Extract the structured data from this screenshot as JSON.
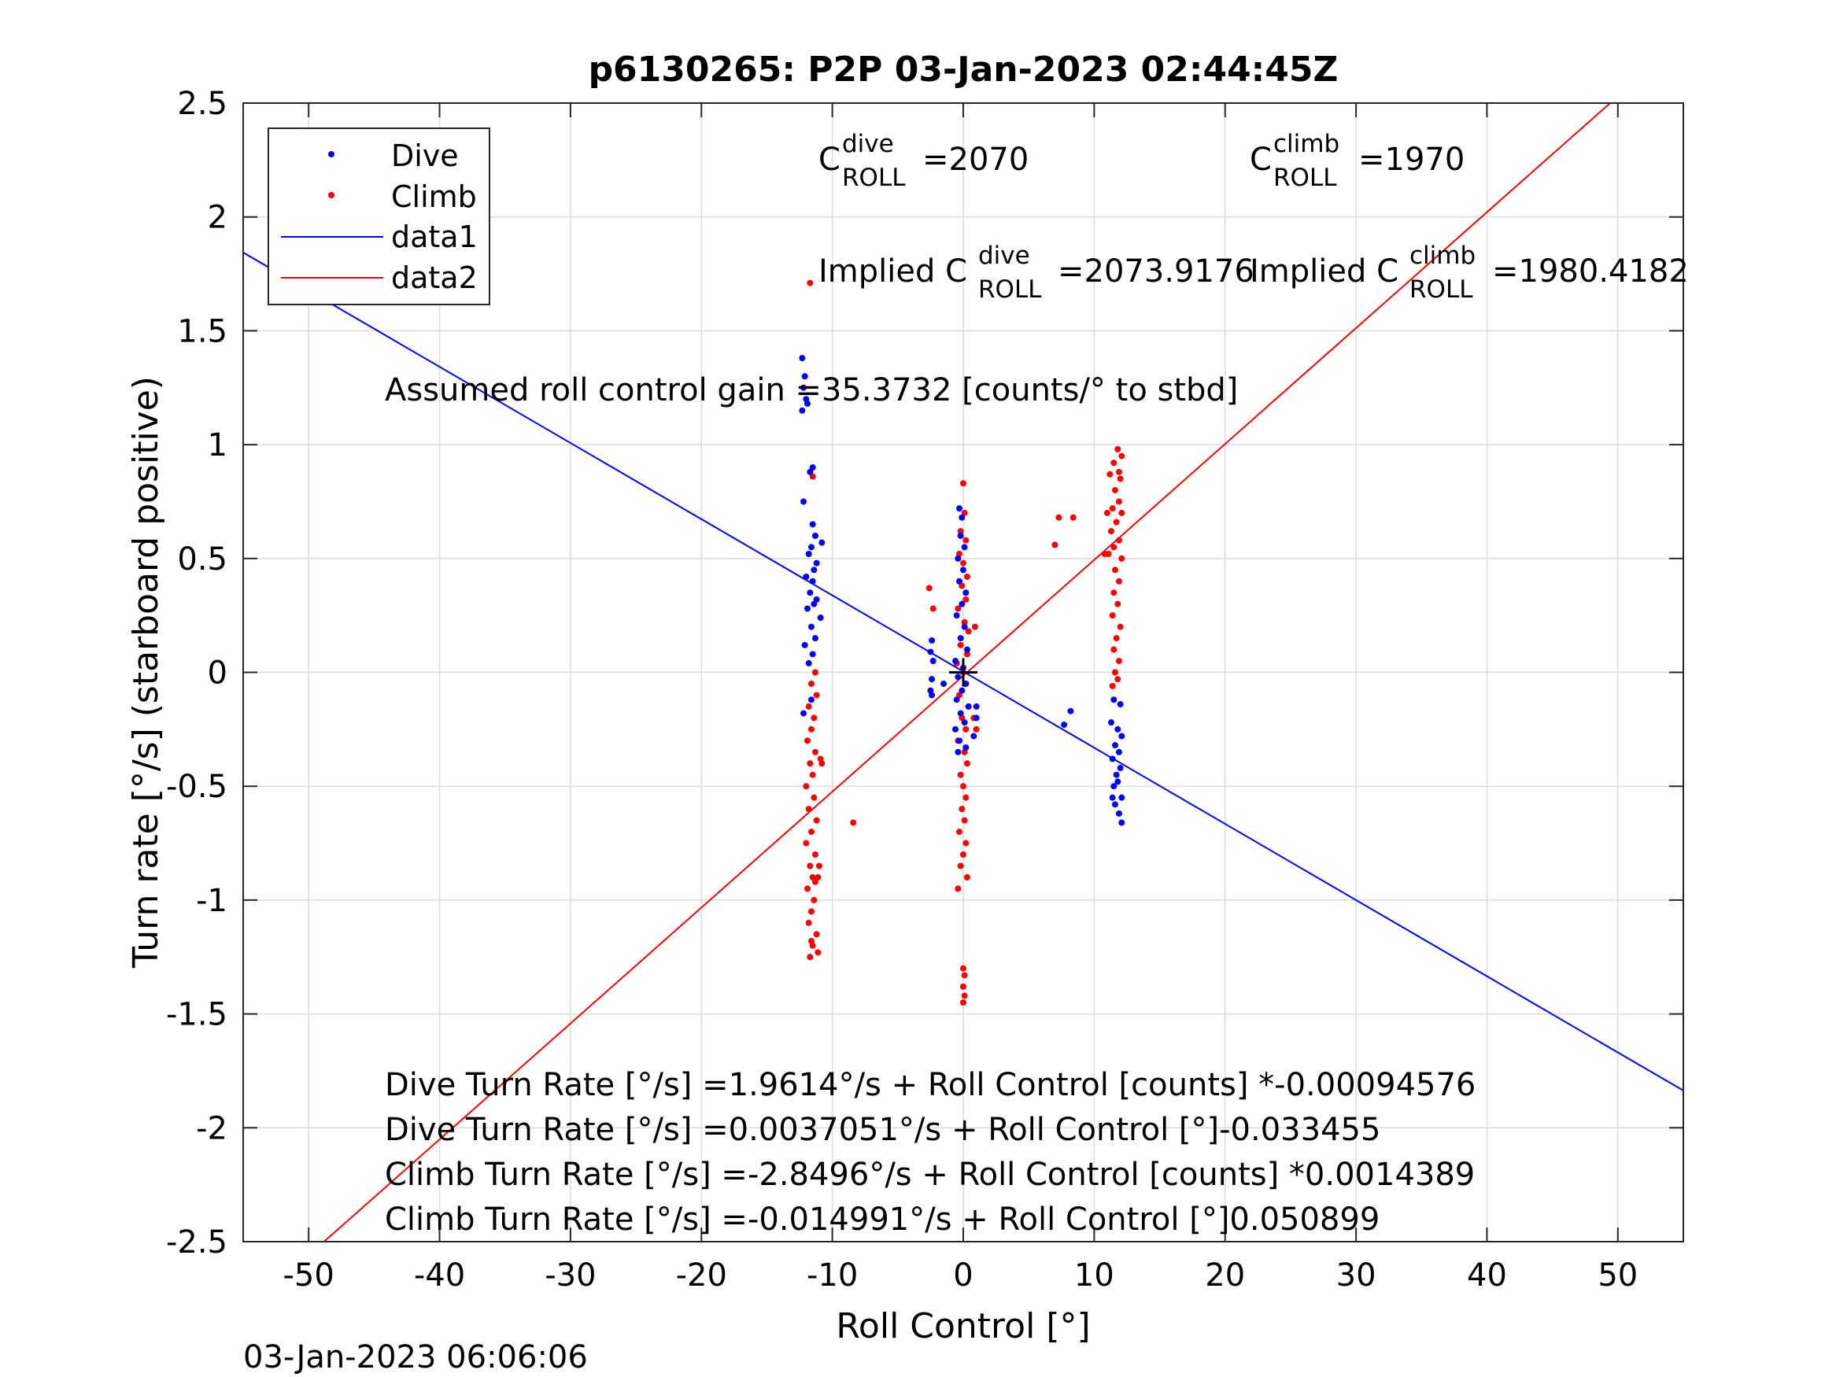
{
  "chart_data": {
    "type": "scatter",
    "title": "p6130265: P2P 03-Jan-2023 02:44:45Z",
    "xlabel": "Roll Control [°]",
    "ylabel": "Turn rate [°/s] (starboard positive)",
    "xlim": [
      -55,
      55
    ],
    "ylim": [
      -2.5,
      2.5
    ],
    "xticks": [
      -50,
      -40,
      -30,
      -20,
      -10,
      0,
      10,
      20,
      30,
      40,
      50
    ],
    "yticks": [
      2.5,
      2,
      1.5,
      1,
      0.5,
      0,
      -0.5,
      -1,
      -1.5,
      -2,
      -2.5
    ],
    "ytick_labels": [
      "2.5",
      "2",
      "1.5",
      "1",
      "0.5",
      "0",
      "-0.5",
      "-1",
      "-1.5",
      "-2",
      "-2.5"
    ],
    "grid": true,
    "legend_position": "top-left",
    "legend": [
      "Dive",
      "Climb",
      "data1",
      "data2"
    ],
    "timestamp": "03-Jan-2023 06:06:06",
    "annotations": {
      "c_dive_base": "C",
      "c_dive_sup": "dive",
      "c_dive_sub": "ROLL",
      "c_dive_val": "=2070",
      "c_climb_base": "C",
      "c_climb_sup": "climb",
      "c_climb_sub": "ROLL",
      "c_climb_val": "=1970",
      "impl_dive_pre": "Implied C",
      "impl_dive_sup": "dive",
      "impl_dive_sub": "ROLL",
      "impl_dive_val": "=2073.9176",
      "impl_climb_pre": "Implied C",
      "impl_climb_sup": "climb",
      "impl_climb_sub": "ROLL",
      "impl_climb_val": "=1980.4182",
      "gain": "Assumed roll control gain =35.3732 [counts/° to stbd]",
      "eq1": "Dive Turn Rate [°/s] =1.9614°/s + Roll Control [counts] *-0.00094576",
      "eq2": "Dive Turn Rate [°/s] =0.0037051°/s + Roll Control [°]-0.033455",
      "eq3": "Climb Turn Rate [°/s] =-2.8496°/s + Roll Control [counts] *0.0014389",
      "eq4": "Climb Turn Rate [°/s] =-0.014991°/s + Roll Control [°]0.050899"
    },
    "fit_lines": [
      {
        "name": "data1",
        "color": "#0000ff",
        "intercept": 0.0037051,
        "slope": -0.033455
      },
      {
        "name": "data2",
        "color": "#ff0000",
        "intercept": -0.014991,
        "slope": 0.050899
      }
    ],
    "series": [
      {
        "name": "Dive",
        "color": "#0000ff",
        "points": [
          [
            -12.3,
            1.38
          ],
          [
            -12.1,
            1.3
          ],
          [
            -12.2,
            1.25
          ],
          [
            -12.0,
            1.2
          ],
          [
            -12.3,
            1.15
          ],
          [
            -11.9,
            1.18
          ],
          [
            -11.5,
            0.9
          ],
          [
            -11.7,
            0.88
          ],
          [
            -12.2,
            0.75
          ],
          [
            -11.5,
            0.65
          ],
          [
            -11.3,
            0.6
          ],
          [
            -11.6,
            0.55
          ],
          [
            -10.8,
            0.57
          ],
          [
            -11.8,
            0.52
          ],
          [
            -11.2,
            0.48
          ],
          [
            -11.4,
            0.45
          ],
          [
            -12.0,
            0.42
          ],
          [
            -11.5,
            0.4
          ],
          [
            -11.7,
            0.35
          ],
          [
            -11.2,
            0.32
          ],
          [
            -11.9,
            0.28
          ],
          [
            -11.4,
            0.3
          ],
          [
            -10.9,
            0.24
          ],
          [
            -11.6,
            0.2
          ],
          [
            -11.3,
            0.15
          ],
          [
            -12.1,
            0.12
          ],
          [
            -11.5,
            0.08
          ],
          [
            -11.8,
            0.04
          ],
          [
            -12.2,
            -0.18
          ],
          [
            -11.6,
            -0.12
          ],
          [
            -2.4,
            0.14
          ],
          [
            -2.5,
            0.09
          ],
          [
            -2.3,
            0.05
          ],
          [
            -2.4,
            -0.03
          ],
          [
            -2.5,
            -0.08
          ],
          [
            -2.4,
            -0.1
          ],
          [
            -1.5,
            -0.05
          ],
          [
            -0.3,
            0.72
          ],
          [
            -0.1,
            0.68
          ],
          [
            -0.2,
            0.6
          ],
          [
            0.1,
            0.55
          ],
          [
            -0.4,
            0.5
          ],
          [
            0.0,
            0.45
          ],
          [
            -0.3,
            0.4
          ],
          [
            0.2,
            0.35
          ],
          [
            -0.1,
            0.3
          ],
          [
            -0.5,
            0.25
          ],
          [
            0.1,
            0.2
          ],
          [
            -0.2,
            0.15
          ],
          [
            0.3,
            0.1
          ],
          [
            -0.6,
            0.05
          ],
          [
            0.0,
            0.02
          ],
          [
            -0.4,
            -0.02
          ],
          [
            0.2,
            -0.05
          ],
          [
            -0.1,
            -0.08
          ],
          [
            -0.5,
            -0.12
          ],
          [
            0.4,
            -0.15
          ],
          [
            -0.2,
            -0.18
          ],
          [
            0.1,
            -0.22
          ],
          [
            -0.6,
            -0.25
          ],
          [
            -0.3,
            -0.3
          ],
          [
            0.2,
            -0.33
          ],
          [
            -0.4,
            -0.35
          ],
          [
            1.0,
            -0.15
          ],
          [
            1.0,
            -0.2
          ],
          [
            0.8,
            -0.28
          ],
          [
            7.7,
            -0.23
          ],
          [
            8.2,
            -0.17
          ],
          [
            11.5,
            -0.12
          ],
          [
            12.0,
            -0.14
          ],
          [
            11.3,
            -0.22
          ],
          [
            11.8,
            -0.25
          ],
          [
            12.1,
            -0.28
          ],
          [
            11.6,
            -0.32
          ],
          [
            11.9,
            -0.35
          ],
          [
            11.4,
            -0.38
          ],
          [
            12.0,
            -0.42
          ],
          [
            11.7,
            -0.45
          ],
          [
            11.5,
            -0.5
          ],
          [
            12.1,
            -0.55
          ],
          [
            11.6,
            -0.58
          ],
          [
            11.9,
            -0.62
          ],
          [
            12.1,
            -0.66
          ],
          [
            11.4,
            -0.55
          ],
          [
            11.8,
            -0.48
          ]
        ]
      },
      {
        "name": "Climb",
        "color": "#ff0000",
        "points": [
          [
            -11.7,
            1.71
          ],
          [
            -11.5,
            0.86
          ],
          [
            -11.3,
            0.0
          ],
          [
            -11.6,
            -0.05
          ],
          [
            -11.2,
            -0.1
          ],
          [
            -11.8,
            -0.15
          ],
          [
            -11.4,
            -0.2
          ],
          [
            -11.6,
            -0.25
          ],
          [
            -11.9,
            -0.3
          ],
          [
            -11.3,
            -0.35
          ],
          [
            -11.7,
            -0.4
          ],
          [
            -11.5,
            -0.45
          ],
          [
            -12.0,
            -0.5
          ],
          [
            -11.4,
            -0.55
          ],
          [
            -11.8,
            -0.6
          ],
          [
            -11.2,
            -0.65
          ],
          [
            -11.6,
            -0.7
          ],
          [
            -12.0,
            -0.75
          ],
          [
            -11.3,
            -0.8
          ],
          [
            -11.7,
            -0.85
          ],
          [
            -11.5,
            -0.9
          ],
          [
            -11.9,
            -0.95
          ],
          [
            -11.4,
            -1.0
          ],
          [
            -11.6,
            -1.05
          ],
          [
            -11.8,
            -1.1
          ],
          [
            -11.2,
            -1.15
          ],
          [
            -11.5,
            -1.2
          ],
          [
            -11.7,
            -1.25
          ],
          [
            -11.1,
            -1.23
          ],
          [
            -11.3,
            -0.92
          ],
          [
            -11.6,
            -1.18
          ],
          [
            -10.9,
            -0.38
          ],
          [
            -10.8,
            -0.4
          ],
          [
            -11.0,
            -0.85
          ],
          [
            -11.1,
            -0.9
          ],
          [
            -8.4,
            -0.66
          ],
          [
            -2.6,
            0.37
          ],
          [
            -2.3,
            0.28
          ],
          [
            0.0,
            0.83
          ],
          [
            0.1,
            0.7
          ],
          [
            -0.2,
            0.62
          ],
          [
            0.2,
            0.58
          ],
          [
            -0.3,
            0.52
          ],
          [
            0.0,
            0.48
          ],
          [
            0.3,
            0.42
          ],
          [
            -0.1,
            0.38
          ],
          [
            0.2,
            0.32
          ],
          [
            -0.4,
            0.28
          ],
          [
            0.1,
            0.22
          ],
          [
            0.4,
            0.18
          ],
          [
            -0.2,
            0.12
          ],
          [
            0.3,
            0.08
          ],
          [
            -0.5,
            0.04
          ],
          [
            0.0,
            0.0
          ],
          [
            0.2,
            -0.05
          ],
          [
            -0.3,
            -0.1
          ],
          [
            0.4,
            -0.15
          ],
          [
            -0.1,
            -0.2
          ],
          [
            0.2,
            -0.25
          ],
          [
            -0.4,
            -0.3
          ],
          [
            0.1,
            -0.35
          ],
          [
            0.3,
            -0.4
          ],
          [
            -0.2,
            -0.45
          ],
          [
            0.0,
            -0.5
          ],
          [
            0.2,
            -0.55
          ],
          [
            -0.1,
            -0.6
          ],
          [
            0.1,
            -0.65
          ],
          [
            -0.3,
            -0.7
          ],
          [
            0.2,
            -0.75
          ],
          [
            0.0,
            -0.8
          ],
          [
            -0.2,
            -0.85
          ],
          [
            0.3,
            -0.9
          ],
          [
            -0.4,
            -0.95
          ],
          [
            0.0,
            -1.3
          ],
          [
            0.1,
            -1.33
          ],
          [
            0.0,
            -1.38
          ],
          [
            0.1,
            -1.42
          ],
          [
            0.0,
            -1.45
          ],
          [
            0.9,
            0.2
          ],
          [
            0.8,
            -0.2
          ],
          [
            1.0,
            -0.25
          ],
          [
            7.0,
            0.56
          ],
          [
            7.3,
            0.68
          ],
          [
            8.4,
            0.68
          ],
          [
            11.8,
            0.98
          ],
          [
            12.1,
            0.95
          ],
          [
            11.5,
            0.92
          ],
          [
            11.9,
            0.88
          ],
          [
            11.2,
            0.87
          ],
          [
            12.0,
            0.85
          ],
          [
            11.6,
            0.8
          ],
          [
            11.9,
            0.75
          ],
          [
            11.4,
            0.72
          ],
          [
            12.1,
            0.7
          ],
          [
            11.7,
            0.66
          ],
          [
            11.3,
            0.62
          ],
          [
            11.9,
            0.58
          ],
          [
            11.5,
            0.55
          ],
          [
            12.1,
            0.5
          ],
          [
            11.6,
            0.45
          ],
          [
            11.9,
            0.4
          ],
          [
            11.5,
            0.35
          ],
          [
            11.8,
            0.3
          ],
          [
            11.4,
            0.25
          ],
          [
            12.0,
            0.2
          ],
          [
            11.7,
            0.15
          ],
          [
            11.5,
            0.1
          ],
          [
            11.9,
            0.05
          ],
          [
            11.6,
            0.0
          ],
          [
            11.8,
            -0.03
          ],
          [
            11.4,
            -0.06
          ],
          [
            11.1,
            0.52
          ],
          [
            11.0,
            0.7
          ],
          [
            10.8,
            0.52
          ]
        ]
      }
    ]
  }
}
